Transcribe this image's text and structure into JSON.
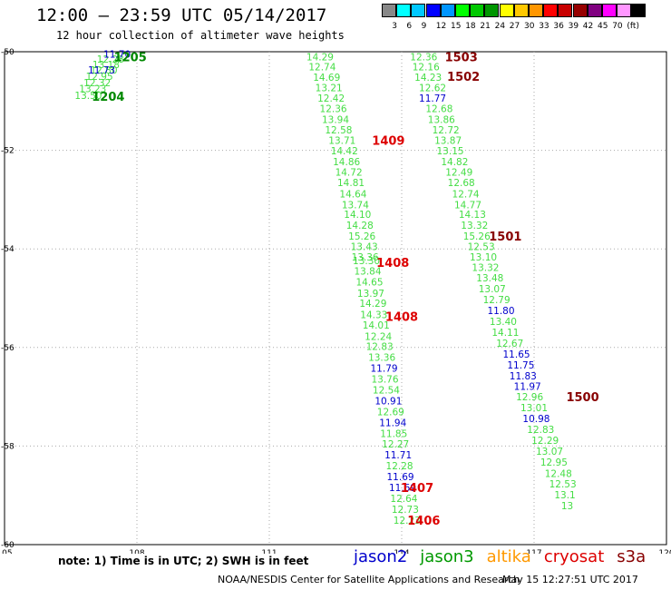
{
  "header": {
    "title": "12:00 — 23:59 UTC 05/14/2017",
    "subtitle": "12 hour collection of altimeter wave heights"
  },
  "scale": {
    "colors": [
      "#888888",
      "#00ffff",
      "#00c8ff",
      "#0000ff",
      "#0096ff",
      "#00ff00",
      "#00c800",
      "#009600",
      "#ffff00",
      "#ffc800",
      "#ff9600",
      "#ff0000",
      "#c80000",
      "#960000",
      "#800080",
      "#ff00ff",
      "#ff96ff",
      "#000000"
    ],
    "labels": [
      "3",
      "6",
      "9",
      "12",
      "15",
      "18",
      "21",
      "24",
      "27",
      "30",
      "33",
      "36",
      "39",
      "42",
      "45",
      "70",
      "(ft)"
    ]
  },
  "legend": {
    "note": "note:  1) Time is in UTC;  2) SWH is in feet",
    "satellites": [
      {
        "name": "jason2",
        "color": "#0000cc"
      },
      {
        "name": "jason3",
        "color": "#009900"
      },
      {
        "name": "altika",
        "color": "#ff9900"
      },
      {
        "name": "cryosat",
        "color": "#dd0000"
      },
      {
        "name": "s3a",
        "color": "#880000"
      }
    ]
  },
  "footer": {
    "credit": "NOAA/NESDIS Center for Satellite Applications and Research",
    "timestamp": "May 15 12:27:51 UTC 2017"
  },
  "colors": {
    "j3": "#44dd44",
    "j2": "#0000cc",
    "time_j3": "#008800",
    "time_cryo": "#dd0000",
    "time_s3a": "#880000",
    "grid": "#aaaaaa"
  },
  "chart_data": {
    "type": "scatter",
    "title": "12:00 — 23:59 UTC 05/14/2017",
    "subtitle": "12 hour collection of altimeter wave heights",
    "xlim": [
      105,
      120
    ],
    "ylim": [
      -60,
      -50
    ],
    "x_ticks": [
      "105",
      "108",
      "111",
      "114",
      "117",
      "120"
    ],
    "y_ticks": [
      "-50",
      "-52",
      "-54",
      "-56",
      "-58",
      "-60"
    ],
    "grid": true,
    "series": [
      {
        "name": "jason3",
        "color": "j3",
        "points": [
          {
            "x": 107.4,
            "y": -50.15,
            "v": "12.28"
          },
          {
            "x": 107.3,
            "y": -50.26,
            "v": "13.18"
          },
          {
            "x": 107.25,
            "y": -50.37,
            "v": "12.80"
          },
          {
            "x": 107.15,
            "y": -50.5,
            "v": "12.95"
          },
          {
            "x": 107.1,
            "y": -50.63,
            "v": "12.32"
          },
          {
            "x": 107.0,
            "y": -50.75,
            "v": "13.23"
          },
          {
            "x": 106.9,
            "y": -50.88,
            "v": "13.50"
          },
          {
            "x": 112.15,
            "y": -50.1,
            "v": "14.29"
          },
          {
            "x": 112.2,
            "y": -50.3,
            "v": "12.74"
          },
          {
            "x": 112.3,
            "y": -50.52,
            "v": "14.69"
          },
          {
            "x": 112.35,
            "y": -50.73,
            "v": "13.21"
          },
          {
            "x": 112.4,
            "y": -50.94,
            "v": "12.42"
          },
          {
            "x": 112.45,
            "y": -51.15,
            "v": "12.36"
          },
          {
            "x": 112.5,
            "y": -51.37,
            "v": "13.94"
          },
          {
            "x": 112.57,
            "y": -51.58,
            "v": "12.58"
          },
          {
            "x": 112.65,
            "y": -51.8,
            "v": "13.71"
          },
          {
            "x": 112.7,
            "y": -52.01,
            "v": "14.42"
          },
          {
            "x": 112.75,
            "y": -52.23,
            "v": "14.86"
          },
          {
            "x": 112.8,
            "y": -52.44,
            "v": "14.72"
          },
          {
            "x": 112.85,
            "y": -52.65,
            "v": "14.81"
          },
          {
            "x": 112.9,
            "y": -52.88,
            "v": "14.64"
          },
          {
            "x": 112.95,
            "y": -53.1,
            "v": "13.74"
          },
          {
            "x": 113.0,
            "y": -53.3,
            "v": "14.10"
          },
          {
            "x": 113.05,
            "y": -53.52,
            "v": "14.28"
          },
          {
            "x": 113.1,
            "y": -53.74,
            "v": "15.26"
          },
          {
            "x": 113.15,
            "y": -53.95,
            "v": "13.43"
          },
          {
            "x": 113.17,
            "y": -54.16,
            "v": "13.36"
          },
          {
            "x": 113.2,
            "y": -54.24,
            "v": "13.30"
          },
          {
            "x": 113.23,
            "y": -54.45,
            "v": "13.84"
          },
          {
            "x": 113.27,
            "y": -54.67,
            "v": "14.65"
          },
          {
            "x": 113.3,
            "y": -54.9,
            "v": "13.97"
          },
          {
            "x": 113.35,
            "y": -55.1,
            "v": "14.29"
          },
          {
            "x": 113.37,
            "y": -55.33,
            "v": "14.33"
          },
          {
            "x": 113.42,
            "y": -55.54,
            "v": "14.01"
          },
          {
            "x": 113.47,
            "y": -55.77,
            "v": "12.24"
          },
          {
            "x": 113.5,
            "y": -55.98,
            "v": "12.83"
          },
          {
            "x": 113.55,
            "y": -56.2,
            "v": "13.36"
          },
          {
            "x": 113.62,
            "y": -56.64,
            "v": "13.76"
          },
          {
            "x": 113.65,
            "y": -56.86,
            "v": "12.54"
          },
          {
            "x": 113.75,
            "y": -57.3,
            "v": "12.69"
          },
          {
            "x": 113.82,
            "y": -57.74,
            "v": "11.85"
          },
          {
            "x": 113.86,
            "y": -57.96,
            "v": "12.27"
          },
          {
            "x": 113.95,
            "y": -58.4,
            "v": "12.28"
          },
          {
            "x": 114.05,
            "y": -59.06,
            "v": "12.64"
          },
          {
            "x": 114.08,
            "y": -59.28,
            "v": "12.73"
          },
          {
            "x": 114.12,
            "y": -59.5,
            "v": "12.23"
          },
          {
            "x": 114.5,
            "y": -50.1,
            "v": "12.36"
          },
          {
            "x": 114.55,
            "y": -50.3,
            "v": "12.16"
          },
          {
            "x": 114.6,
            "y": -50.52,
            "v": "14.23"
          },
          {
            "x": 114.7,
            "y": -50.73,
            "v": "12.62"
          },
          {
            "x": 114.85,
            "y": -51.15,
            "v": "12.68"
          },
          {
            "x": 114.9,
            "y": -51.37,
            "v": "13.86"
          },
          {
            "x": 115.0,
            "y": -51.58,
            "v": "12.72"
          },
          {
            "x": 115.05,
            "y": -51.8,
            "v": "13.87"
          },
          {
            "x": 115.1,
            "y": -52.01,
            "v": "13.15"
          },
          {
            "x": 115.2,
            "y": -52.23,
            "v": "14.82"
          },
          {
            "x": 115.3,
            "y": -52.44,
            "v": "12.49"
          },
          {
            "x": 115.35,
            "y": -52.65,
            "v": "12.68"
          },
          {
            "x": 115.45,
            "y": -52.88,
            "v": "12.74"
          },
          {
            "x": 115.5,
            "y": -53.1,
            "v": "14.77"
          },
          {
            "x": 115.6,
            "y": -53.3,
            "v": "14.13"
          },
          {
            "x": 115.65,
            "y": -53.52,
            "v": "13.32"
          },
          {
            "x": 115.7,
            "y": -53.74,
            "v": "15.26"
          },
          {
            "x": 115.8,
            "y": -53.95,
            "v": "12.53"
          },
          {
            "x": 115.85,
            "y": -54.16,
            "v": "13.10"
          },
          {
            "x": 115.9,
            "y": -54.37,
            "v": "13.32"
          },
          {
            "x": 116.0,
            "y": -54.59,
            "v": "13.48"
          },
          {
            "x": 116.05,
            "y": -54.81,
            "v": "13.07"
          },
          {
            "x": 116.15,
            "y": -55.03,
            "v": "12.79"
          },
          {
            "x": 116.3,
            "y": -55.47,
            "v": "13.40"
          },
          {
            "x": 116.35,
            "y": -55.69,
            "v": "14.11"
          },
          {
            "x": 116.45,
            "y": -55.91,
            "v": "12.67"
          },
          {
            "x": 116.9,
            "y": -57.0,
            "v": "12.96"
          },
          {
            "x": 117.0,
            "y": -57.22,
            "v": "13.01"
          },
          {
            "x": 117.15,
            "y": -57.66,
            "v": "12.83"
          },
          {
            "x": 117.25,
            "y": -57.88,
            "v": "12.29"
          },
          {
            "x": 117.35,
            "y": -58.1,
            "v": "13.07"
          },
          {
            "x": 117.45,
            "y": -58.32,
            "v": "12.95"
          },
          {
            "x": 117.55,
            "y": -58.55,
            "v": "12.48"
          },
          {
            "x": 117.65,
            "y": -58.77,
            "v": "12.53"
          },
          {
            "x": 117.7,
            "y": -58.99,
            "v": "13.1"
          },
          {
            "x": 117.75,
            "y": -59.21,
            "v": "13"
          }
        ]
      },
      {
        "name": "jason2",
        "color": "j2",
        "points": [
          {
            "x": 107.55,
            "y": -50.05,
            "v": "11.70"
          },
          {
            "x": 107.2,
            "y": -50.37,
            "v": "11.73"
          },
          {
            "x": 113.6,
            "y": -56.42,
            "v": "11.79"
          },
          {
            "x": 113.7,
            "y": -57.08,
            "v": "10.91"
          },
          {
            "x": 113.8,
            "y": -57.52,
            "v": "11.94"
          },
          {
            "x": 113.92,
            "y": -58.18,
            "v": "11.71"
          },
          {
            "x": 113.97,
            "y": -58.62,
            "v": "11.69"
          },
          {
            "x": 114.02,
            "y": -58.84,
            "v": "11.69"
          },
          {
            "x": 114.7,
            "y": -50.94,
            "v": "11.77"
          },
          {
            "x": 116.25,
            "y": -55.25,
            "v": "11.80"
          },
          {
            "x": 116.6,
            "y": -56.13,
            "v": "11.65"
          },
          {
            "x": 116.7,
            "y": -56.35,
            "v": "11.75"
          },
          {
            "x": 116.75,
            "y": -56.57,
            "v": "11.83"
          },
          {
            "x": 116.85,
            "y": -56.79,
            "v": "11.97"
          },
          {
            "x": 117.05,
            "y": -57.44,
            "v": "10.98"
          }
        ]
      }
    ],
    "time_labels": [
      {
        "x": 107.85,
        "y": -50.1,
        "t": "1205",
        "c": "time_j3"
      },
      {
        "x": 107.35,
        "y": -50.9,
        "t": "1204",
        "c": "time_j3"
      },
      {
        "x": 113.7,
        "y": -51.8,
        "t": "1409",
        "c": "time_cryo"
      },
      {
        "x": 113.8,
        "y": -54.27,
        "t": "1408",
        "c": "time_cryo"
      },
      {
        "x": 114.0,
        "y": -55.37,
        "t": "1408",
        "c": "time_cryo"
      },
      {
        "x": 114.35,
        "y": -58.84,
        "t": "1407",
        "c": "time_cryo"
      },
      {
        "x": 114.5,
        "y": -59.5,
        "t": "1406",
        "c": "time_cryo"
      },
      {
        "x": 115.35,
        "y": -50.1,
        "t": "1503",
        "c": "time_s3a"
      },
      {
        "x": 115.4,
        "y": -50.5,
        "t": "1502",
        "c": "time_s3a"
      },
      {
        "x": 116.35,
        "y": -53.74,
        "t": "1501",
        "c": "time_s3a"
      },
      {
        "x": 118.1,
        "y": -57.0,
        "t": "1500",
        "c": "time_s3a"
      }
    ]
  }
}
